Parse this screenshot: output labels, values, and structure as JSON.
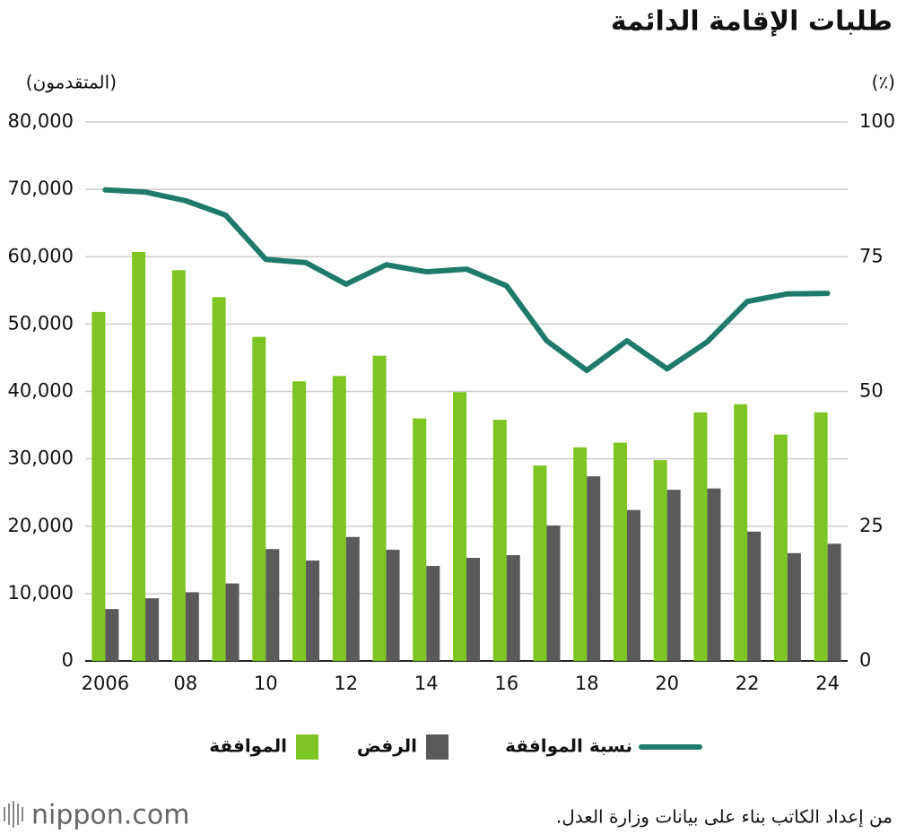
{
  "chart_data": {
    "type": "bar",
    "title": "طلبات الإقامة الدائمة",
    "y_label": "(المتقدمون)",
    "y2_label": "(٪)",
    "source": "من إعداد الكاتب بناء على بيانات وزارة العدل.",
    "logo": "nippon.com",
    "categories": [
      "2006",
      null,
      "08",
      null,
      "10",
      null,
      "12",
      null,
      "14",
      null,
      "16",
      null,
      "18",
      null,
      "20",
      null,
      "22",
      null,
      "24"
    ],
    "series": [
      {
        "name": "الموافقة",
        "type": "bar",
        "color": "#7dc520",
        "values": [
          51800,
          60700,
          58000,
          54000,
          48100,
          41500,
          42300,
          45300,
          36000,
          39900,
          35800,
          29000,
          31700,
          32400,
          29800,
          36900,
          38100,
          33600,
          36900
        ]
      },
      {
        "name": "الرفض",
        "type": "bar",
        "color": "#5a5a5a",
        "values": [
          7700,
          9300,
          10200,
          11500,
          16600,
          14900,
          18400,
          16500,
          14100,
          15300,
          15700,
          20100,
          27400,
          22400,
          25400,
          25600,
          19200,
          16000,
          17400
        ]
      },
      {
        "name": "نسبة الموافقة",
        "type": "line",
        "axis": "y2",
        "color": "#1e7a6a",
        "values": [
          87.4,
          87.0,
          85.4,
          82.7,
          74.5,
          73.9,
          69.9,
          73.5,
          72.2,
          72.7,
          69.6,
          59.4,
          53.9,
          59.4,
          54.2,
          59.2,
          66.7,
          68.1,
          68.2
        ]
      }
    ],
    "ylim": [
      0,
      80000
    ],
    "yticks": [
      0,
      {
        "value": 10000,
        "label": "10,000"
      },
      {
        "value": 20000,
        "label": "20,000"
      },
      {
        "value": 30000,
        "label": "30,000"
      },
      {
        "value": 40000,
        "label": "40,000"
      },
      {
        "value": 50000,
        "label": "50,000"
      },
      {
        "value": 60000,
        "label": "60,000"
      },
      {
        "value": 70000,
        "label": "70,000"
      },
      {
        "value": 80000,
        "label": "80,000"
      }
    ],
    "y2lim": [
      0,
      100
    ],
    "y2ticks": [
      0,
      25,
      50,
      75,
      100
    ],
    "grid": true,
    "legend": "bottom"
  }
}
